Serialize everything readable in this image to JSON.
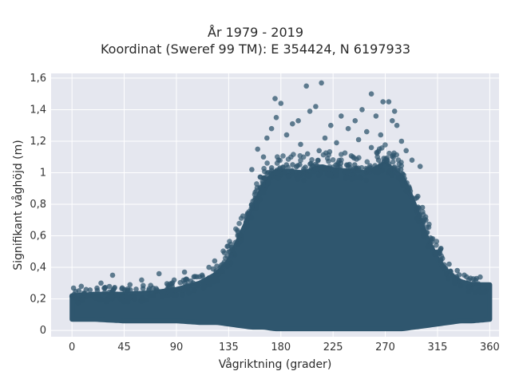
{
  "chart_data": {
    "type": "scatter",
    "title": "År 1979 - 2019",
    "subtitle": "Koordinat (Sweref 99 TM): E 354424, N 6197933",
    "xlabel": "Vågriktning (grader)",
    "ylabel": "Signifikant våghöjd (m)",
    "xlim": [
      -18,
      368
    ],
    "ylim": [
      -0.04,
      1.63
    ],
    "x_ticks": [
      0,
      45,
      90,
      135,
      180,
      225,
      270,
      315,
      360
    ],
    "x_tick_labels": [
      "0",
      "45",
      "90",
      "135",
      "180",
      "225",
      "270",
      "315",
      "360"
    ],
    "y_ticks": [
      0,
      0.2,
      0.4,
      0.6,
      0.8,
      1.0,
      1.2,
      1.4,
      1.6
    ],
    "y_tick_labels": [
      "0",
      "0,2",
      "0,4",
      "0,6",
      "0,8",
      "1",
      "1,2",
      "1,4",
      "1,6"
    ],
    "grid": true,
    "marker_color": "#2f566e",
    "background_color": "#e5e7ef",
    "envelope": {
      "x": [
        0,
        20,
        45,
        70,
        90,
        110,
        125,
        135,
        145,
        155,
        165,
        175,
        185,
        200,
        215,
        225,
        240,
        255,
        270,
        285,
        295,
        305,
        315,
        325,
        335,
        345,
        360
      ],
      "y_low": [
        0.07,
        0.07,
        0.06,
        0.06,
        0.06,
        0.05,
        0.05,
        0.04,
        0.03,
        0.02,
        0.02,
        0.01,
        0.01,
        0.01,
        0.01,
        0.01,
        0.01,
        0.01,
        0.01,
        0.01,
        0.02,
        0.03,
        0.04,
        0.05,
        0.06,
        0.06,
        0.07
      ],
      "y_high": [
        0.22,
        0.23,
        0.23,
        0.24,
        0.26,
        0.3,
        0.36,
        0.44,
        0.6,
        0.76,
        0.92,
        1.01,
        1.01,
        1.0,
        1.04,
        1.02,
        1.01,
        1.0,
        1.06,
        0.97,
        0.8,
        0.6,
        0.45,
        0.36,
        0.31,
        0.29,
        0.29
      ]
    },
    "outliers": [
      {
        "x": 175,
        "y": 1.47
      },
      {
        "x": 180,
        "y": 1.44
      },
      {
        "x": 202,
        "y": 1.55
      },
      {
        "x": 215,
        "y": 1.57
      },
      {
        "x": 210,
        "y": 1.42
      },
      {
        "x": 205,
        "y": 1.39
      },
      {
        "x": 258,
        "y": 1.5
      },
      {
        "x": 268,
        "y": 1.45
      },
      {
        "x": 273,
        "y": 1.45
      },
      {
        "x": 278,
        "y": 1.39
      },
      {
        "x": 250,
        "y": 1.4
      },
      {
        "x": 176,
        "y": 1.35
      },
      {
        "x": 190,
        "y": 1.31
      },
      {
        "x": 223,
        "y": 1.3
      },
      {
        "x": 244,
        "y": 1.33
      },
      {
        "x": 262,
        "y": 1.36
      },
      {
        "x": 280,
        "y": 1.3
      },
      {
        "x": 172,
        "y": 1.28
      },
      {
        "x": 195,
        "y": 1.33
      },
      {
        "x": 232,
        "y": 1.36
      },
      {
        "x": 254,
        "y": 1.26
      },
      {
        "x": 276,
        "y": 1.33
      },
      {
        "x": 185,
        "y": 1.24
      },
      {
        "x": 218,
        "y": 1.22
      },
      {
        "x": 238,
        "y": 1.28
      },
      {
        "x": 266,
        "y": 1.24
      },
      {
        "x": 160,
        "y": 1.15
      },
      {
        "x": 168,
        "y": 1.22
      },
      {
        "x": 197,
        "y": 1.18
      },
      {
        "x": 213,
        "y": 1.14
      },
      {
        "x": 228,
        "y": 1.19
      },
      {
        "x": 247,
        "y": 1.21
      },
      {
        "x": 284,
        "y": 1.2
      },
      {
        "x": 288,
        "y": 1.14
      },
      {
        "x": 258,
        "y": 1.16
      },
      {
        "x": 165,
        "y": 1.1
      },
      {
        "x": 203,
        "y": 1.12
      },
      {
        "x": 293,
        "y": 1.08
      },
      {
        "x": 300,
        "y": 1.04
      },
      {
        "x": 155,
        "y": 1.02
      },
      {
        "x": 123,
        "y": 0.44
      },
      {
        "x": 130,
        "y": 0.42
      },
      {
        "x": 118,
        "y": 0.4
      },
      {
        "x": 97,
        "y": 0.37
      },
      {
        "x": 75,
        "y": 0.36
      },
      {
        "x": 60,
        "y": 0.32
      },
      {
        "x": 35,
        "y": 0.35
      },
      {
        "x": 25,
        "y": 0.3
      },
      {
        "x": 8,
        "y": 0.28
      },
      {
        "x": 105,
        "y": 0.34
      },
      {
        "x": 88,
        "y": 0.32
      },
      {
        "x": 50,
        "y": 0.29
      },
      {
        "x": 318,
        "y": 0.52
      },
      {
        "x": 325,
        "y": 0.42
      },
      {
        "x": 332,
        "y": 0.38
      },
      {
        "x": 340,
        "y": 0.34
      },
      {
        "x": 310,
        "y": 0.58
      },
      {
        "x": 305,
        "y": 0.7
      },
      {
        "x": 298,
        "y": 0.85
      },
      {
        "x": 302,
        "y": 0.78
      }
    ]
  }
}
